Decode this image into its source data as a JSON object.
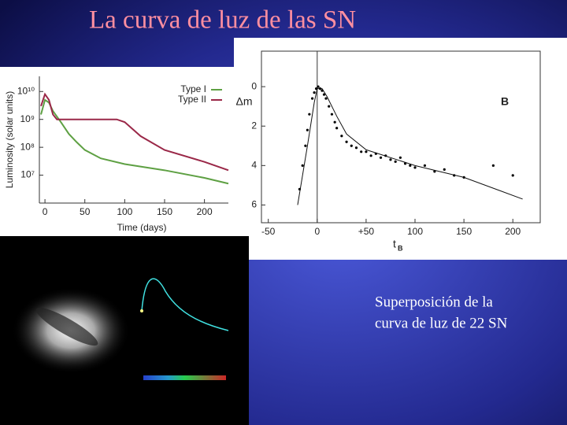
{
  "slide": {
    "title": "La curva de luz de las SN",
    "caption_line1": "Superposición de la",
    "caption_line2": "curva de luz de 22 SN"
  },
  "chart_data": [
    {
      "type": "line",
      "x_label": "Time (days)",
      "y_label": "Luminosity (solar units)",
      "log_y": true,
      "xlim": [
        -7,
        230
      ],
      "ylim": [
        1000000,
        35000000000
      ],
      "xticks": [
        0,
        50,
        100,
        150,
        200
      ],
      "yticks": [
        {
          "value": 10000000,
          "label": "10⁷"
        },
        {
          "value": 100000000,
          "label": "10⁸"
        },
        {
          "value": 1000000000,
          "label": "10⁹"
        },
        {
          "value": 10000000000,
          "label": "10¹⁰"
        }
      ],
      "legend": "top-right",
      "series": [
        {
          "name": "Type I",
          "color": "#5ea043",
          "x": [
            -5,
            0,
            5,
            10,
            20,
            30,
            40,
            50,
            70,
            100,
            150,
            200,
            230
          ],
          "values": [
            1500000000,
            5000000000,
            4000000000,
            2000000000,
            800000000,
            300000000,
            150000000,
            80000000,
            40000000,
            25000000,
            15000000,
            8000000,
            5000000
          ]
        },
        {
          "name": "Type II",
          "color": "#9a2848",
          "x": [
            -5,
            0,
            5,
            10,
            15,
            50,
            90,
            100,
            120,
            150,
            200,
            230
          ],
          "values": [
            3000000000,
            8000000000,
            5000000000,
            1500000000,
            1000000000,
            1000000000,
            1000000000,
            800000000,
            250000000,
            80000000,
            30000000,
            15000000
          ]
        }
      ]
    },
    {
      "type": "scatter",
      "x_label": "t",
      "x_label_subscript": "B",
      "y_label": "Δm",
      "annotation": "B",
      "y_inverted": true,
      "xlim": [
        -57,
        228
      ],
      "ylim": [
        -1.8,
        6.9
      ],
      "xticks": [
        -50,
        0,
        {
          "value": 50,
          "label": "+50"
        },
        100,
        150,
        200
      ],
      "yticks": [
        0,
        2,
        4,
        6
      ],
      "reference_x": 0,
      "color": "#000000",
      "points": {
        "x": [
          -18,
          -15,
          -12,
          -10,
          -8,
          -5,
          -3,
          -1,
          1,
          3,
          5,
          7,
          9,
          12,
          15,
          18,
          20,
          25,
          30,
          35,
          40,
          45,
          50,
          55,
          60,
          65,
          70,
          75,
          80,
          85,
          90,
          95,
          100,
          110,
          120,
          130,
          140,
          150,
          180,
          200
        ],
        "y": [
          5.2,
          4.0,
          3.0,
          2.2,
          1.4,
          0.6,
          0.3,
          0.1,
          0.0,
          0.1,
          0.2,
          0.4,
          0.6,
          1.0,
          1.4,
          1.8,
          2.1,
          2.5,
          2.8,
          3.0,
          3.1,
          3.3,
          3.3,
          3.5,
          3.4,
          3.6,
          3.5,
          3.7,
          3.8,
          3.6,
          3.9,
          4.0,
          4.1,
          4.0,
          4.3,
          4.2,
          4.5,
          4.6,
          4.0,
          4.5
        ]
      },
      "fit": {
        "x": [
          -20,
          -10,
          -3,
          0,
          5,
          10,
          20,
          30,
          50,
          100,
          150,
          210
        ],
        "y": [
          6,
          3,
          0.8,
          0.1,
          0.1,
          0.5,
          1.5,
          2.4,
          3.2,
          4.0,
          4.6,
          5.7
        ]
      }
    }
  ]
}
